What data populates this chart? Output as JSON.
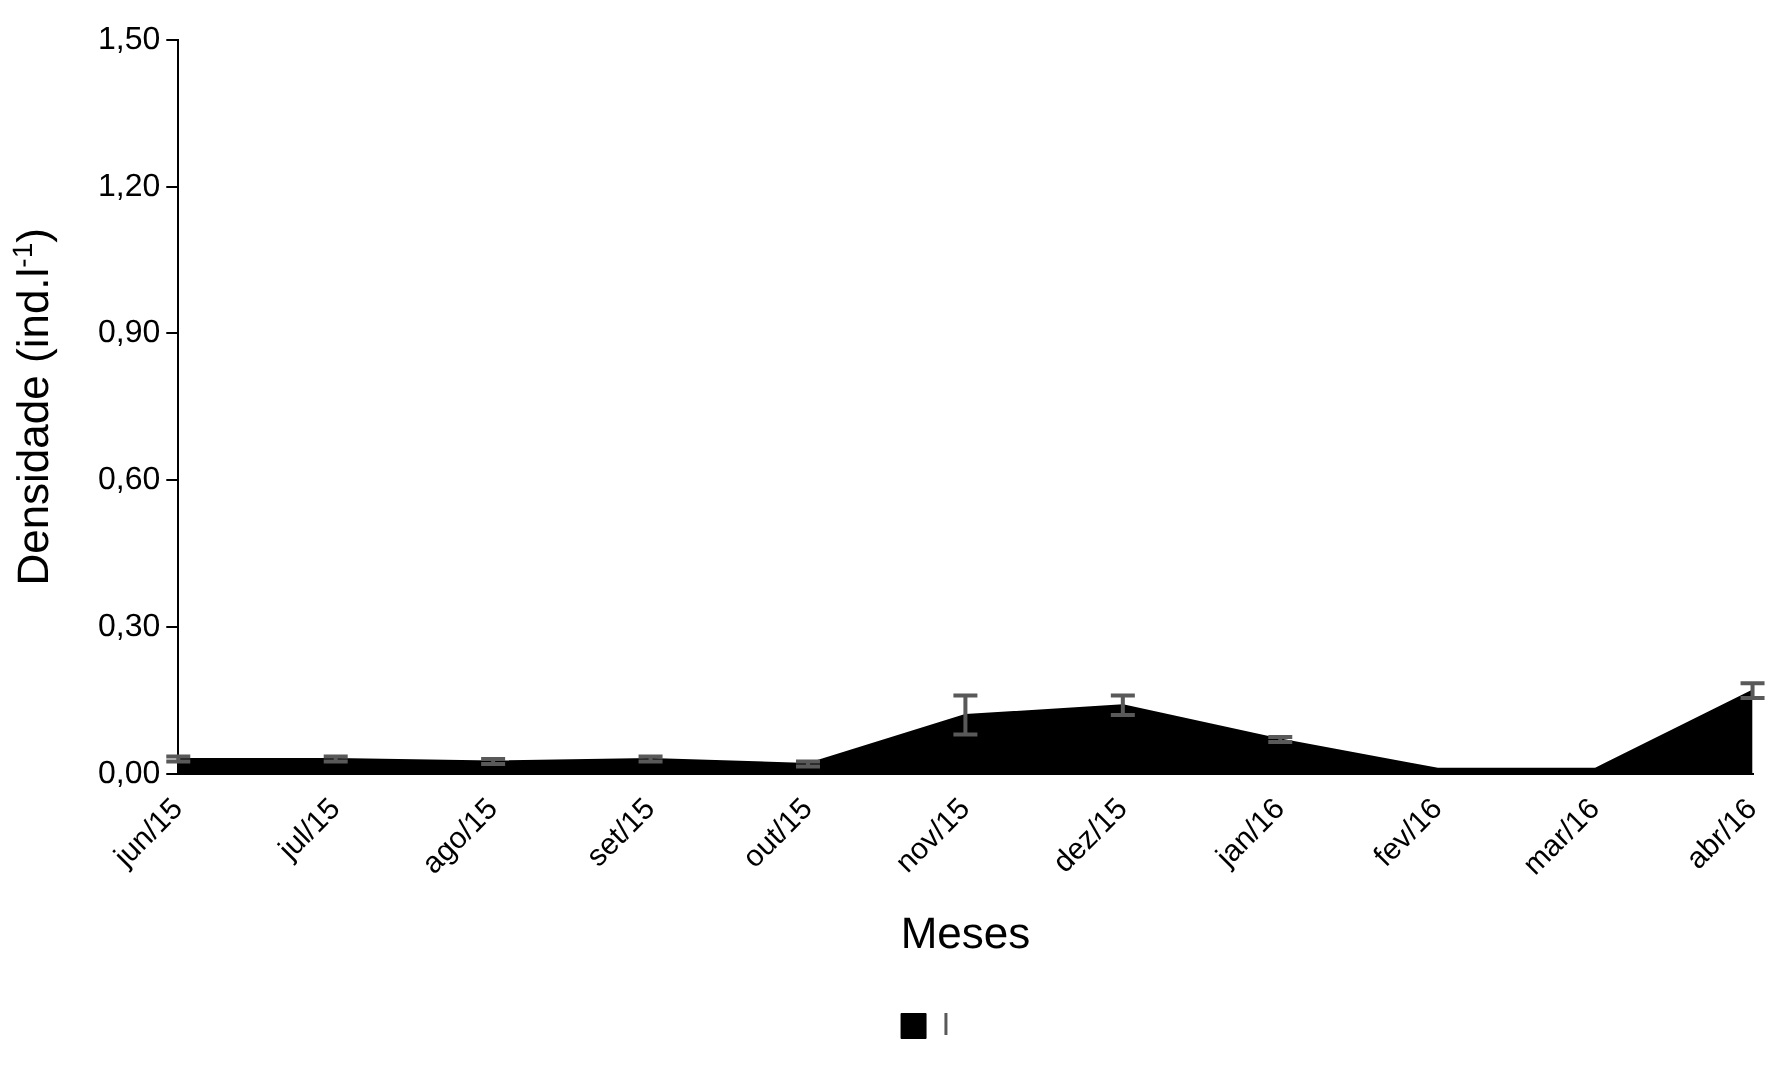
{
  "chart_data": {
    "type": "area",
    "xlabel": "Meses",
    "ylabel": "Densidade (ind.l$^{-1}$)",
    "categories": [
      "jun/15",
      "jul/15",
      "ago/15",
      "set/15",
      "out/15",
      "nov/15",
      "dez/15",
      "jan/16",
      "fev/16",
      "mar/16",
      "abr/16"
    ],
    "series": [
      {
        "name": "I",
        "color": "#000000",
        "values": [
          0.03,
          0.03,
          0.025,
          0.03,
          0.02,
          0.12,
          0.14,
          0.07,
          0.01,
          0.01,
          0.17
        ],
        "errors": [
          0.005,
          0.005,
          0.005,
          0.005,
          0.005,
          0.04,
          0.02,
          0.005,
          null,
          null,
          0.015
        ]
      }
    ],
    "ylim": [
      0,
      1.5
    ],
    "yticks": [
      {
        "value": 0,
        "label": "0,00"
      },
      {
        "value": 0.3,
        "label": "0,30"
      },
      {
        "value": 0.6,
        "label": "0,60"
      },
      {
        "value": 0.9,
        "label": "0,90"
      },
      {
        "value": 1.2,
        "label": "1,20"
      },
      {
        "value": 1.5,
        "label": "1,50"
      }
    ],
    "grid": false,
    "legend": "bottom"
  }
}
